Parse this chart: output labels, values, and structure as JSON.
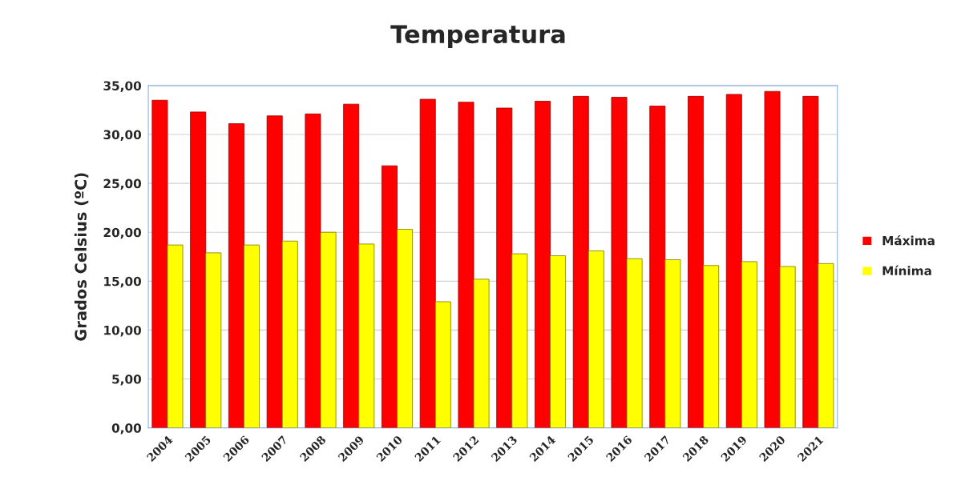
{
  "chart_data": {
    "type": "bar",
    "title": "Temperatura",
    "ylabel": "Grados Celsius (ºC)",
    "categories": [
      "2004",
      "2005",
      "2006",
      "2007",
      "2008",
      "2009",
      "2010",
      "2011",
      "2012",
      "2013",
      "2014",
      "2015",
      "2016",
      "2017",
      "2018",
      "2019",
      "2020",
      "2021"
    ],
    "series": [
      {
        "name": "Máxima",
        "color": "#ff0000",
        "values": [
          33.5,
          32.3,
          31.1,
          31.9,
          32.1,
          33.1,
          26.8,
          33.6,
          33.3,
          32.7,
          33.4,
          33.9,
          33.8,
          32.9,
          33.9,
          34.1,
          34.4,
          33.9
        ]
      },
      {
        "name": "Mínima",
        "color": "#ffff00",
        "values": [
          18.7,
          17.9,
          18.7,
          19.1,
          20.0,
          18.8,
          20.3,
          12.9,
          15.2,
          17.8,
          17.6,
          18.1,
          17.3,
          17.2,
          16.6,
          17.0,
          16.5,
          16.8
        ]
      }
    ],
    "ylim": [
      0,
      35
    ],
    "yticks": [
      {
        "value": 0,
        "label": "0,00"
      },
      {
        "value": 5,
        "label": "5,00"
      },
      {
        "value": 10,
        "label": "10,00"
      },
      {
        "value": 15,
        "label": "15,00"
      },
      {
        "value": 20,
        "label": "20,00"
      },
      {
        "value": 25,
        "label": "25,00"
      },
      {
        "value": 30,
        "label": "30,00"
      },
      {
        "value": 35,
        "label": "35,00"
      }
    ],
    "grid": "y",
    "legend": "right"
  }
}
